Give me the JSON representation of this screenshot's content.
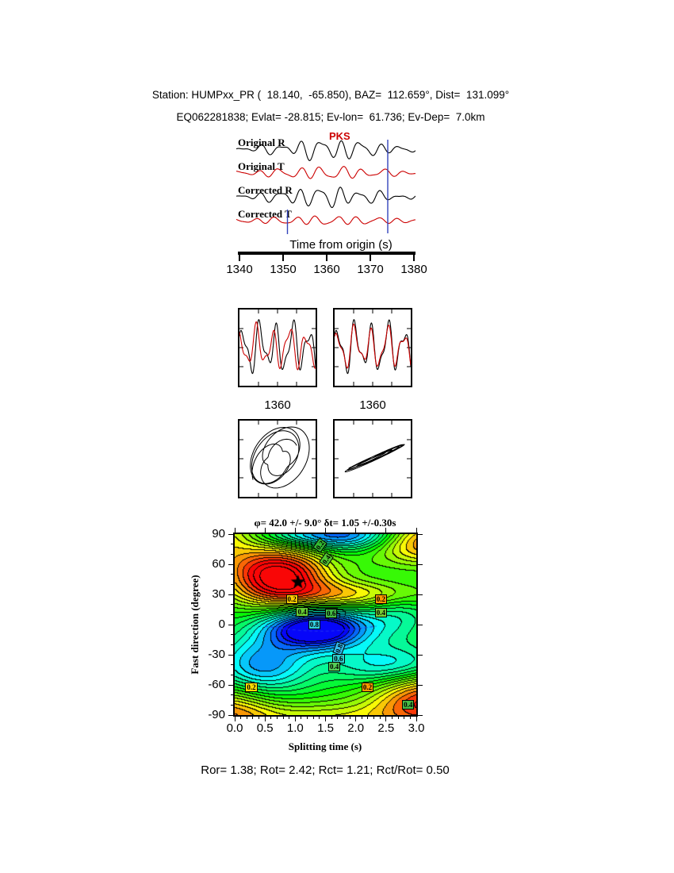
{
  "header": {
    "line1": "Station: HUMPxx_PR (  18.140,  -65.850), BAZ=  112.659°, Dist=  131.099°",
    "line2": "EQ062281838; Evlat= -28.815; Ev-lon=  61.736; Ev-Dep=  7.0km"
  },
  "waveform_panel": {
    "phase_label": "PKS",
    "trace_labels": [
      "Original R",
      "Original T",
      "Corrected R",
      "Corrected T"
    ],
    "axis_label": "Time from origin (s)",
    "time_ticks": [
      "1340",
      "1350",
      "1360",
      "1370",
      "1380"
    ]
  },
  "zoom_panels": {
    "left_label": "1360",
    "right_label": "1360"
  },
  "result_text": "φ= 42.0 +/- 9.0° δt= 1.05 +/-0.30s",
  "contour_panel": {
    "ylabel": "Fast direction (degree)",
    "xlabel": "Splitting time (s)",
    "yticks": [
      "90",
      "60",
      "30",
      "0",
      "-30",
      "-60",
      "-90"
    ],
    "xticks": [
      "0.0",
      "0.5",
      "1.0",
      "1.5",
      "2.0",
      "2.5",
      "3.0"
    ]
  },
  "footer": "Ror= 1.38; Rot= 2.42; Rct= 1.21; Rct/Rot= 0.50",
  "chart_data": [
    {
      "type": "line",
      "panel": "waveforms",
      "xlabel": "Time from origin (s)",
      "x_ticks": [
        1340,
        1350,
        1360,
        1370,
        1380
      ],
      "x_range": [
        1335.5,
        1385.5
      ],
      "phase": "PKS",
      "window_markers_s": [
        1351,
        1374
      ],
      "traces": [
        {
          "name": "Original R",
          "color": "#000000",
          "components": [
            [
              1.0,
              9.0,
              0.0
            ],
            [
              0.55,
              13.5,
              1.9
            ],
            [
              0.35,
              5.2,
              4.4
            ]
          ],
          "envelope": [
            0.25,
            0.52,
            0.3
          ],
          "amp": 7.5
        },
        {
          "name": "Original T",
          "color": "#cc0000",
          "components": [
            [
              1.0,
              8.6,
              1.1
            ],
            [
              0.5,
              12.8,
              3.0
            ],
            [
              0.3,
              5.0,
              0.7
            ]
          ],
          "envelope": [
            0.3,
            0.5,
            0.35
          ],
          "amp": 4.6
        },
        {
          "name": "Corrected R",
          "color": "#000000",
          "components": [
            [
              1.0,
              9.0,
              0.25
            ],
            [
              0.5,
              13.6,
              2.3
            ],
            [
              0.3,
              5.4,
              5.0
            ]
          ],
          "envelope": [
            0.25,
            0.5,
            0.3
          ],
          "amp": 7.5
        },
        {
          "name": "Corrected T",
          "color": "#cc0000",
          "components": [
            [
              1.0,
              8.8,
              2.0
            ],
            [
              0.45,
              13.0,
              4.0
            ],
            [
              0.3,
              4.8,
              2.2
            ]
          ],
          "envelope": [
            0.45,
            0.5,
            0.4
          ],
          "amp": 3.0
        }
      ]
    },
    {
      "type": "line",
      "panel": "zoom-windows",
      "x_tick_label": "1360",
      "pairs": [
        {
          "name": "original",
          "black": [
            [
              1.0,
              4.6,
              0.2
            ],
            [
              0.45,
              8.3,
              1.4
            ],
            [
              0.2,
              2.3,
              3.3
            ]
          ],
          "red": [
            [
              0.95,
              4.6,
              1.45
            ],
            [
              0.4,
              8.3,
              2.65
            ],
            [
              0.2,
              2.3,
              4.55
            ]
          ]
        },
        {
          "name": "corrected",
          "black": [
            [
              1.0,
              4.6,
              0.2
            ],
            [
              0.45,
              8.3,
              1.4
            ],
            [
              0.2,
              2.3,
              3.3
            ]
          ],
          "red": [
            [
              0.95,
              4.6,
              0.35
            ],
            [
              0.4,
              8.3,
              1.55
            ],
            [
              0.2,
              2.3,
              3.45
            ]
          ]
        }
      ]
    },
    {
      "type": "contour",
      "panel": "splitting-error-surface",
      "title": "φ= 42.0 +/- 9.0° δt= 1.05 +/-0.30s",
      "xlabel": "Splitting time (s)",
      "ylabel": "Fast direction (degree)",
      "xlim": [
        0,
        3
      ],
      "ylim": [
        -90,
        90
      ],
      "x_ticks": [
        0,
        0.5,
        1,
        1.5,
        2,
        2.5,
        3
      ],
      "y_ticks": [
        90,
        60,
        30,
        0,
        -30,
        -60,
        -90
      ],
      "best_fit": {
        "fast_direction_deg": 42.0,
        "fast_direction_err_deg": 9.0,
        "split_time_s": 1.05,
        "split_time_err_s": 0.3
      },
      "star": {
        "x": 1.05,
        "y": 42
      },
      "contour_levels": [
        0.2,
        0.4,
        0.6,
        0.8
      ],
      "field_blobs": [
        [
          1.25,
          0.7,
          50,
          0.85,
          28
        ],
        [
          0.85,
          3.2,
          83,
          1.0,
          22
        ],
        [
          0.95,
          3.2,
          -75,
          0.9,
          28
        ],
        [
          0.65,
          -0.2,
          -88,
          0.8,
          26
        ],
        [
          0.55,
          1.9,
          30,
          1.3,
          14
        ],
        [
          0.5,
          -0.3,
          90,
          0.6,
          30
        ],
        [
          0.45,
          1.5,
          -95,
          1.6,
          18
        ],
        [
          -1.35,
          1.35,
          -4,
          0.85,
          20
        ],
        [
          -0.8,
          2.0,
          90,
          0.8,
          16
        ],
        [
          -0.7,
          0.45,
          -40,
          0.8,
          28
        ],
        [
          -0.55,
          2.6,
          -40,
          1.0,
          20
        ],
        [
          -0.45,
          1.1,
          90,
          0.7,
          12
        ],
        [
          -0.3,
          2.7,
          10,
          0.6,
          25
        ]
      ],
      "contour_labels": [
        {
          "x": 1.42,
          "y": 79,
          "text": "0.2",
          "bg": "#33bb33",
          "rot": -55
        },
        {
          "x": 1.52,
          "y": 65,
          "text": "0.4",
          "bg": "#55cc33",
          "rot": -55
        },
        {
          "x": 0.95,
          "y": 25,
          "text": "0.2",
          "bg": "#ffcc00",
          "rot": 0
        },
        {
          "x": 2.42,
          "y": 25,
          "text": "0.2",
          "bg": "#ff9900",
          "rot": 0
        },
        {
          "x": 1.12,
          "y": 13,
          "text": "0.4",
          "bg": "#66cc33",
          "rot": 0
        },
        {
          "x": 1.6,
          "y": 11,
          "text": "0.6",
          "bg": "#44bb44",
          "rot": 0
        },
        {
          "x": 2.42,
          "y": 12,
          "text": "0.4",
          "bg": "#77cc33",
          "rot": 0
        },
        {
          "x": 1.32,
          "y": 0,
          "text": "0.8",
          "bg": "#33ccdd",
          "rot": 0
        },
        {
          "x": 1.73,
          "y": -24,
          "text": "0.8",
          "bg": "#33bbee",
          "rot": -70
        },
        {
          "x": 1.72,
          "y": -34,
          "text": "0.6",
          "bg": "#33cccc",
          "rot": 0
        },
        {
          "x": 1.65,
          "y": -42,
          "text": "0.4",
          "bg": "#55cc55",
          "rot": 0
        },
        {
          "x": 0.28,
          "y": -62,
          "text": "0.2",
          "bg": "#ffdd00",
          "rot": 0
        },
        {
          "x": 2.2,
          "y": -62,
          "text": "0.2",
          "bg": "#ff9900",
          "rot": 0
        },
        {
          "x": 2.87,
          "y": -80,
          "text": "0.4",
          "bg": "#44bb44",
          "rot": 0
        }
      ]
    }
  ]
}
